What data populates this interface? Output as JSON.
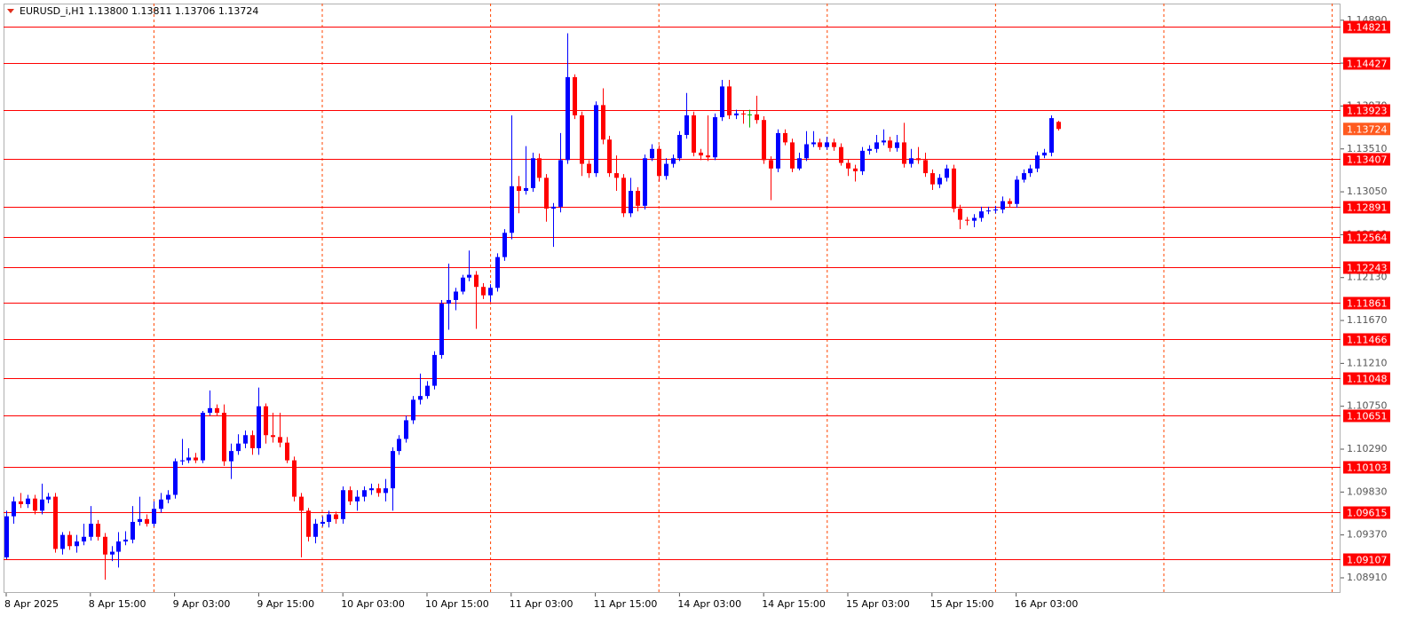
{
  "chart_data": {
    "type": "candlestick",
    "title": "EURUSD_i,H1  1.13800 1.13811 1.13706 1.13724",
    "categories": [
      "8 Apr 2025",
      null,
      null,
      null,
      null,
      null,
      null,
      null,
      null,
      null,
      null,
      null,
      "8 Apr 15:00",
      null,
      null,
      null,
      null,
      null,
      null,
      null,
      null,
      null,
      null,
      null,
      "9 Apr 03:00",
      null,
      null,
      null,
      null,
      null,
      null,
      null,
      null,
      null,
      null,
      null,
      "9 Apr 15:00",
      null,
      null,
      null,
      null,
      null,
      null,
      null,
      null,
      null,
      null,
      null,
      "10 Apr 03:00",
      null,
      null,
      null,
      null,
      null,
      null,
      null,
      null,
      null,
      null,
      null,
      "10 Apr 15:00",
      null,
      null,
      null,
      null,
      null,
      null,
      null,
      null,
      null,
      null,
      null,
      "11 Apr 03:00",
      null,
      null,
      null,
      null,
      null,
      null,
      null,
      null,
      null,
      null,
      null,
      "11 Apr 15:00",
      null,
      null,
      null,
      null,
      null,
      null,
      null,
      null,
      null,
      null,
      null,
      "14 Apr 03:00",
      null,
      null,
      null,
      null,
      null,
      null,
      null,
      null,
      null,
      null,
      null,
      "14 Apr 15:00",
      null,
      null,
      null,
      null,
      null,
      null,
      null,
      null,
      null,
      null,
      null,
      "15 Apr 03:00",
      null,
      null,
      null,
      null,
      null,
      null,
      null,
      null,
      null,
      null,
      null,
      "15 Apr 15:00",
      null,
      null,
      null,
      null,
      null,
      null,
      null,
      null,
      null,
      null,
      null,
      "16 Apr 03:00",
      null,
      null,
      null,
      null,
      null,
      null
    ],
    "ohlc": [
      [
        1.0913,
        1.0963,
        1.0911,
        1.0957
      ],
      [
        1.0957,
        1.0978,
        1.0949,
        1.0973
      ],
      [
        1.0973,
        1.0982,
        1.0966,
        1.097
      ],
      [
        1.097,
        1.098,
        1.0966,
        1.0976
      ],
      [
        1.0976,
        1.098,
        1.0959,
        1.0963
      ],
      [
        1.0963,
        1.0992,
        1.0959,
        1.0975
      ],
      [
        1.0975,
        1.0982,
        1.0971,
        1.0978
      ],
      [
        1.0978,
        1.0982,
        1.0918,
        1.0922
      ],
      [
        1.0922,
        1.094,
        1.0916,
        1.0937
      ],
      [
        1.0937,
        1.0941,
        1.0921,
        1.0925
      ],
      [
        1.0925,
        1.0937,
        1.0918,
        1.093
      ],
      [
        1.093,
        1.0949,
        1.0926,
        1.0935
      ],
      [
        1.0935,
        1.0968,
        1.0931,
        1.0949
      ],
      [
        1.0949,
        1.0953,
        1.0931,
        1.0935
      ],
      [
        1.0935,
        1.0939,
        1.0889,
        1.0916
      ],
      [
        1.0916,
        1.0925,
        1.0909,
        1.0919
      ],
      [
        1.0919,
        1.094,
        1.0902,
        1.093
      ],
      [
        1.093,
        1.0941,
        1.0926,
        1.0932
      ],
      [
        1.0932,
        1.0968,
        1.0928,
        1.0951
      ],
      [
        1.0951,
        1.0978,
        1.0947,
        1.0954
      ],
      [
        1.0954,
        1.0959,
        1.0946,
        1.0949
      ],
      [
        1.0949,
        1.0973,
        1.0946,
        1.0965
      ],
      [
        1.0965,
        1.0982,
        1.0961,
        1.0975
      ],
      [
        1.0975,
        1.0985,
        1.0971,
        1.098
      ],
      [
        1.098,
        1.1019,
        1.0976,
        1.1016
      ],
      [
        1.1016,
        1.104,
        1.1012,
        1.1017
      ],
      [
        1.1017,
        1.103,
        1.1014,
        1.102
      ],
      [
        1.102,
        1.1025,
        1.1014,
        1.1017
      ],
      [
        1.1017,
        1.107,
        1.1014,
        1.1068
      ],
      [
        1.1068,
        1.1092,
        1.1065,
        1.1073
      ],
      [
        1.1073,
        1.1077,
        1.1065,
        1.1068
      ],
      [
        1.1068,
        1.1077,
        1.1011,
        1.1016
      ],
      [
        1.1016,
        1.1035,
        1.0997,
        1.1027
      ],
      [
        1.1027,
        1.1045,
        1.1023,
        1.1035
      ],
      [
        1.1035,
        1.1049,
        1.103,
        1.1044
      ],
      [
        1.1044,
        1.1049,
        1.1023,
        1.103
      ],
      [
        1.103,
        1.1095,
        1.1023,
        1.1075
      ],
      [
        1.1075,
        1.1078,
        1.1035,
        1.1044
      ],
      [
        1.1044,
        1.1068,
        1.1036,
        1.1042
      ],
      [
        1.1042,
        1.1068,
        1.1031,
        1.1036
      ],
      [
        1.1036,
        1.1042,
        1.1014,
        1.1017
      ],
      [
        1.1017,
        1.1021,
        1.0973,
        1.0978
      ],
      [
        1.0978,
        1.0982,
        1.0913,
        1.0963
      ],
      [
        1.0963,
        1.0966,
        1.093,
        1.0935
      ],
      [
        1.0935,
        1.0954,
        1.0928,
        1.0949
      ],
      [
        1.0949,
        1.0957,
        1.0946,
        1.0951
      ],
      [
        1.0951,
        1.0963,
        1.0945,
        1.0959
      ],
      [
        1.0959,
        1.0962,
        1.0949,
        1.0954
      ],
      [
        1.0954,
        1.0989,
        1.0949,
        1.0985
      ],
      [
        1.0985,
        1.0989,
        1.0969,
        1.0973
      ],
      [
        1.0973,
        1.0985,
        1.0963,
        1.0978
      ],
      [
        1.0978,
        1.0989,
        1.0973,
        1.0985
      ],
      [
        1.0985,
        1.0992,
        1.098,
        1.0987
      ],
      [
        1.0987,
        1.0992,
        1.0978,
        1.0982
      ],
      [
        1.0982,
        1.0997,
        1.0973,
        1.0987
      ],
      [
        1.0987,
        1.1031,
        1.0963,
        1.1027
      ],
      [
        1.1027,
        1.1044,
        1.1023,
        1.104
      ],
      [
        1.104,
        1.1065,
        1.1036,
        1.106
      ],
      [
        1.106,
        1.1086,
        1.1056,
        1.1082
      ],
      [
        1.1082,
        1.111,
        1.1077,
        1.1086
      ],
      [
        1.1086,
        1.1102,
        1.1083,
        1.1097
      ],
      [
        1.1097,
        1.1134,
        1.1093,
        1.113
      ],
      [
        1.113,
        1.1189,
        1.1126,
        1.1185
      ],
      [
        1.1185,
        1.1228,
        1.1157,
        1.1189
      ],
      [
        1.1189,
        1.1202,
        1.1178,
        1.1198
      ],
      [
        1.1198,
        1.1216,
        1.1195,
        1.1213
      ],
      [
        1.1213,
        1.1242,
        1.1209,
        1.1216
      ],
      [
        1.1216,
        1.122,
        1.1158,
        1.1203
      ],
      [
        1.1203,
        1.1207,
        1.119,
        1.1194
      ],
      [
        1.1194,
        1.1206,
        1.1187,
        1.1202
      ],
      [
        1.1202,
        1.1239,
        1.1198,
        1.1235
      ],
      [
        1.1235,
        1.1265,
        1.1231,
        1.1261
      ],
      [
        1.1261,
        1.1387,
        1.1254,
        1.1311
      ],
      [
        1.1311,
        1.1322,
        1.1282,
        1.1306
      ],
      [
        1.1306,
        1.1354,
        1.1302,
        1.1309
      ],
      [
        1.1309,
        1.1347,
        1.1305,
        1.1341
      ],
      [
        1.1341,
        1.1346,
        1.1316,
        1.132
      ],
      [
        1.132,
        1.1324,
        1.1273,
        1.1287
      ],
      [
        1.1287,
        1.1293,
        1.1246,
        1.1289
      ],
      [
        1.1289,
        1.1368,
        1.1283,
        1.1339
      ],
      [
        1.1339,
        1.1475,
        1.1335,
        1.1428
      ],
      [
        1.1428,
        1.1431,
        1.1383,
        1.1387
      ],
      [
        1.1387,
        1.1391,
        1.1322,
        1.1335
      ],
      [
        1.1335,
        1.1339,
        1.132,
        1.1325
      ],
      [
        1.1325,
        1.1402,
        1.1321,
        1.1398
      ],
      [
        1.1398,
        1.1416,
        1.1356,
        1.1361
      ],
      [
        1.1361,
        1.1365,
        1.1321,
        1.1325
      ],
      [
        1.1325,
        1.1344,
        1.1306,
        1.132
      ],
      [
        1.132,
        1.1324,
        1.1278,
        1.1282
      ],
      [
        1.1282,
        1.132,
        1.1278,
        1.1306
      ],
      [
        1.1306,
        1.131,
        1.1284,
        1.129
      ],
      [
        1.129,
        1.1345,
        1.1286,
        1.1341
      ],
      [
        1.1341,
        1.1356,
        1.1338,
        1.1351
      ],
      [
        1.1351,
        1.1355,
        1.1316,
        1.1322
      ],
      [
        1.1322,
        1.1341,
        1.1318,
        1.1335
      ],
      [
        1.1335,
        1.1345,
        1.1331,
        1.1341
      ],
      [
        1.1341,
        1.137,
        1.1338,
        1.1366
      ],
      [
        1.1366,
        1.1411,
        1.1362,
        1.1387
      ],
      [
        1.1387,
        1.1391,
        1.1343,
        1.1347
      ],
      [
        1.1347,
        1.1351,
        1.1339,
        1.1344
      ],
      [
        1.1344,
        1.1387,
        1.1338,
        1.1342
      ],
      [
        1.1342,
        1.1389,
        1.1339,
        1.1385
      ],
      [
        1.1385,
        1.1425,
        1.1381,
        1.1418
      ],
      [
        1.1418,
        1.1425,
        1.1383,
        1.1387
      ],
      [
        1.1387,
        1.1393,
        1.1383,
        1.1389
      ],
      [
        1.1389,
        1.1392,
        1.1378,
        1.1388
      ],
      [
        1.1388,
        1.1393,
        1.1374,
        1.1388
      ],
      [
        1.1388,
        1.1408,
        1.1378,
        1.1382
      ],
      [
        1.1382,
        1.1386,
        1.1335,
        1.1339
      ],
      [
        1.1339,
        1.1343,
        1.1296,
        1.133
      ],
      [
        1.133,
        1.1372,
        1.1326,
        1.1368
      ],
      [
        1.1368,
        1.1372,
        1.1355,
        1.1358
      ],
      [
        1.1358,
        1.1362,
        1.1326,
        1.133
      ],
      [
        1.133,
        1.1347,
        1.1328,
        1.1341
      ],
      [
        1.1341,
        1.137,
        1.1338,
        1.1356
      ],
      [
        1.1356,
        1.137,
        1.1353,
        1.1358
      ],
      [
        1.1358,
        1.1362,
        1.135,
        1.1353
      ],
      [
        1.1353,
        1.1364,
        1.135,
        1.1358
      ],
      [
        1.1358,
        1.1362,
        1.1349,
        1.1353
      ],
      [
        1.1353,
        1.1357,
        1.1333,
        1.1336
      ],
      [
        1.1336,
        1.134,
        1.1322,
        1.133
      ],
      [
        1.133,
        1.1334,
        1.1316,
        1.1327
      ],
      [
        1.1327,
        1.1353,
        1.1323,
        1.1349
      ],
      [
        1.1349,
        1.1355,
        1.1345,
        1.1351
      ],
      [
        1.1351,
        1.1366,
        1.1347,
        1.1358
      ],
      [
        1.1358,
        1.1372,
        1.1355,
        1.136
      ],
      [
        1.136,
        1.1364,
        1.1348,
        1.1352
      ],
      [
        1.1352,
        1.1366,
        1.1348,
        1.1358
      ],
      [
        1.1358,
        1.1379,
        1.1331,
        1.1335
      ],
      [
        1.1335,
        1.1351,
        1.1331,
        1.1341
      ],
      [
        1.1341,
        1.1353,
        1.1335,
        1.1339
      ],
      [
        1.1339,
        1.1347,
        1.1321,
        1.1325
      ],
      [
        1.1325,
        1.1329,
        1.1307,
        1.1313
      ],
      [
        1.1313,
        1.1324,
        1.1309,
        1.132
      ],
      [
        1.132,
        1.1334,
        1.1316,
        1.133
      ],
      [
        1.133,
        1.1334,
        1.1283,
        1.1287
      ],
      [
        1.1287,
        1.1291,
        1.1265,
        1.1275
      ],
      [
        1.1275,
        1.1278,
        1.1269,
        1.1274
      ],
      [
        1.1274,
        1.1281,
        1.1267,
        1.1277
      ],
      [
        1.1277,
        1.1289,
        1.1273,
        1.1284
      ],
      [
        1.1284,
        1.1289,
        1.1281,
        1.1285
      ],
      [
        1.1285,
        1.129,
        1.1282,
        1.1286
      ],
      [
        1.1286,
        1.13,
        1.1282,
        1.1295
      ],
      [
        1.1295,
        1.1298,
        1.1288,
        1.1292
      ],
      [
        1.1292,
        1.1322,
        1.1288,
        1.1318
      ],
      [
        1.1318,
        1.1329,
        1.1315,
        1.1325
      ],
      [
        1.1325,
        1.1334,
        1.1321,
        1.133
      ],
      [
        1.133,
        1.1348,
        1.1326,
        1.1344
      ],
      [
        1.1344,
        1.1351,
        1.1341,
        1.1347
      ],
      [
        1.1347,
        1.1387,
        1.1343,
        1.1384
      ],
      [
        1.138,
        1.13811,
        1.13706,
        1.13724
      ]
    ],
    "up_color": "#0000ff",
    "down_color": "#ff0000",
    "doji_color": "#00b000",
    "ylim": [
      1.08748,
      1.15069
    ],
    "yticks": [
      {
        "value": 1.1489,
        "label": "1.14890"
      },
      {
        "value": 1.1443,
        "label": "1.14430"
      },
      {
        "value": 1.1397,
        "label": "1.13970"
      },
      {
        "value": 1.1351,
        "label": "1.13510"
      },
      {
        "value": 1.1305,
        "label": "1.13050"
      },
      {
        "value": 1.1259,
        "label": "1.12590"
      },
      {
        "value": 1.1213,
        "label": "1.12130"
      },
      {
        "value": 1.1167,
        "label": "1.11670"
      },
      {
        "value": 1.1121,
        "label": "1.11210"
      },
      {
        "value": 1.1075,
        "label": "1.10750"
      },
      {
        "value": 1.1029,
        "label": "1.10290"
      },
      {
        "value": 1.0983,
        "label": "1.09830"
      },
      {
        "value": 1.0937,
        "label": "1.09370"
      },
      {
        "value": 1.0891,
        "label": "1.08910"
      }
    ],
    "levels": [
      1.14821,
      1.14427,
      1.13923,
      1.13407,
      1.12891,
      1.12564,
      1.12243,
      1.11861,
      1.11466,
      1.11048,
      1.10651,
      1.10103,
      1.09615,
      1.09107
    ],
    "level_color": "#ff0000",
    "last_price": 1.13724,
    "last_price_color": "#ff5a1f",
    "period_separators": true,
    "separator_color": "#ff4500"
  }
}
